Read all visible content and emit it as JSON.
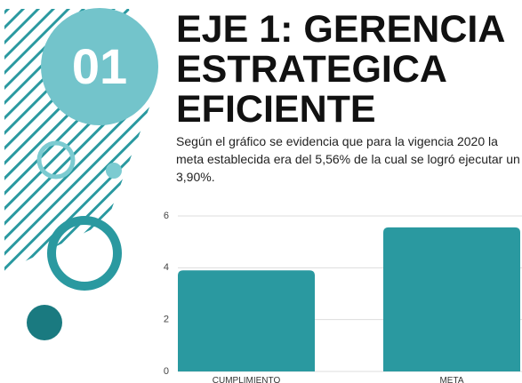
{
  "badge": "01",
  "chart_data": {
    "type": "bar",
    "title": [
      "EJE 1: GERENCIA",
      "ESTRATEGICA",
      "EFICIENTE"
    ],
    "subtitle": "Según el gráfico se evidencia que para la vigencia 2020 la meta establecida era del 5,56% de la cual se logró ejecutar un 3,90%.",
    "categories": [
      "CUMPLIMIENTO",
      "META"
    ],
    "values": [
      3.9,
      5.56
    ],
    "color": "#2a99a0",
    "ylim": [
      0,
      6
    ],
    "yticks": [
      0,
      2,
      4,
      6
    ],
    "grid": true
  }
}
